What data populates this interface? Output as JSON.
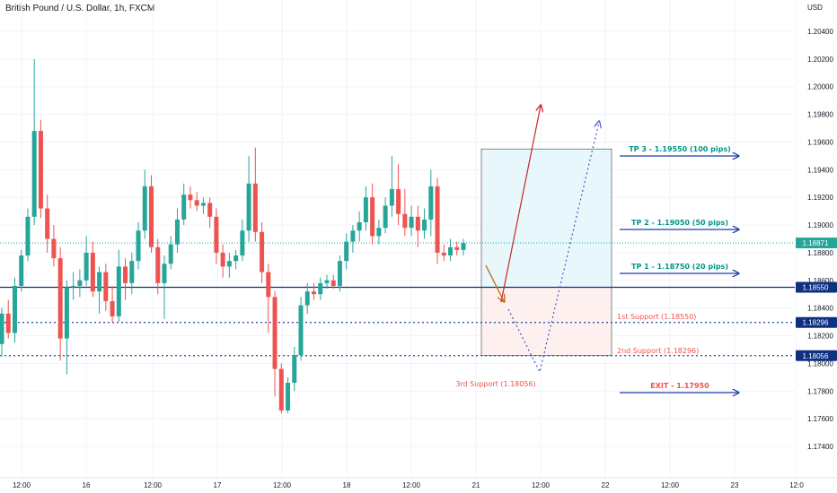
{
  "chart_data": {
    "type": "candlestick",
    "title": "British Pound / U.S. Dollar, 1h, FXCM",
    "currency": "USD",
    "y_ticks": [
      "1.20400",
      "1.20200",
      "1.20000",
      "1.19800",
      "1.19600",
      "1.19400",
      "1.19200",
      "1.19000",
      "1.18800",
      "1.18600",
      "1.18400",
      "1.18200",
      "1.18000",
      "1.17800",
      "1.17600",
      "1.17400"
    ],
    "x_ticks": [
      "12:00",
      "16",
      "12:00",
      "17",
      "12:00",
      "18",
      "12:00",
      "21",
      "12:00",
      "22",
      "12:00",
      "23",
      "12:0"
    ],
    "ylim": [
      1.1735,
      1.205
    ],
    "last_price": "1.18871",
    "levels": [
      {
        "value": 1.1855,
        "label": "1.18550",
        "style": "solid",
        "color": "#0d3080"
      },
      {
        "value": 1.18296,
        "label": "1.18296",
        "style": "dotted",
        "color": "#1a3fa8"
      },
      {
        "value": 1.18056,
        "label": "1.18056",
        "style": "dotted",
        "color": "#1a3fa8"
      }
    ],
    "annotations": {
      "tp3": "TP 3 - 1.19550 (100 pips)",
      "tp2": "TP 2 - 1.19050 (50 pips)",
      "tp1": "TP 1 - 1.18750 (20 pips)",
      "support1": "1st Support (1.18550)",
      "support2": "2nd Support (1.18296)",
      "support3": "3rd Support (1.18056)",
      "exit": "EXIT - 1.17950"
    },
    "colors": {
      "up": "#26a69a",
      "down": "#ef5350",
      "tp": "#009688",
      "support": "#ef5350",
      "arrow": "#1a3fa8",
      "last": "#26a69a",
      "level": "#0d3080"
    },
    "candles": [
      {
        "o": 1.1814,
        "h": 1.184,
        "l": 1.1805,
        "c": 1.1836
      },
      {
        "o": 1.1836,
        "h": 1.1846,
        "l": 1.1818,
        "c": 1.1822
      },
      {
        "o": 1.1822,
        "h": 1.1862,
        "l": 1.1815,
        "c": 1.1856
      },
      {
        "o": 1.1856,
        "h": 1.1882,
        "l": 1.1852,
        "c": 1.1878
      },
      {
        "o": 1.1878,
        "h": 1.1912,
        "l": 1.1874,
        "c": 1.1906
      },
      {
        "o": 1.1906,
        "h": 1.202,
        "l": 1.19,
        "c": 1.1968
      },
      {
        "o": 1.1968,
        "h": 1.1976,
        "l": 1.1905,
        "c": 1.1912
      },
      {
        "o": 1.1912,
        "h": 1.1922,
        "l": 1.188,
        "c": 1.189
      },
      {
        "o": 1.189,
        "h": 1.19,
        "l": 1.187,
        "c": 1.1876
      },
      {
        "o": 1.1876,
        "h": 1.1884,
        "l": 1.1802,
        "c": 1.1818
      },
      {
        "o": 1.1818,
        "h": 1.186,
        "l": 1.1792,
        "c": 1.1855
      },
      {
        "o": 1.1855,
        "h": 1.1866,
        "l": 1.1846,
        "c": 1.1856
      },
      {
        "o": 1.1856,
        "h": 1.1868,
        "l": 1.1848,
        "c": 1.186
      },
      {
        "o": 1.186,
        "h": 1.1892,
        "l": 1.1856,
        "c": 1.188
      },
      {
        "o": 1.188,
        "h": 1.1888,
        "l": 1.1848,
        "c": 1.1852
      },
      {
        "o": 1.1852,
        "h": 1.187,
        "l": 1.1836,
        "c": 1.1866
      },
      {
        "o": 1.1866,
        "h": 1.1872,
        "l": 1.1838,
        "c": 1.1845
      },
      {
        "o": 1.1845,
        "h": 1.1856,
        "l": 1.183,
        "c": 1.1834
      },
      {
        "o": 1.1834,
        "h": 1.1882,
        "l": 1.183,
        "c": 1.187
      },
      {
        "o": 1.187,
        "h": 1.1876,
        "l": 1.1846,
        "c": 1.1858
      },
      {
        "o": 1.1858,
        "h": 1.188,
        "l": 1.185,
        "c": 1.1874
      },
      {
        "o": 1.1874,
        "h": 1.1902,
        "l": 1.1868,
        "c": 1.1896
      },
      {
        "o": 1.1896,
        "h": 1.194,
        "l": 1.189,
        "c": 1.1928
      },
      {
        "o": 1.1928,
        "h": 1.1936,
        "l": 1.188,
        "c": 1.1884
      },
      {
        "o": 1.1884,
        "h": 1.189,
        "l": 1.185,
        "c": 1.1858
      },
      {
        "o": 1.1858,
        "h": 1.1878,
        "l": 1.1832,
        "c": 1.1872
      },
      {
        "o": 1.1872,
        "h": 1.1892,
        "l": 1.1868,
        "c": 1.1886
      },
      {
        "o": 1.1886,
        "h": 1.1912,
        "l": 1.188,
        "c": 1.1904
      },
      {
        "o": 1.1904,
        "h": 1.193,
        "l": 1.19,
        "c": 1.1922
      },
      {
        "o": 1.1922,
        "h": 1.1928,
        "l": 1.1912,
        "c": 1.1918
      },
      {
        "o": 1.1918,
        "h": 1.1924,
        "l": 1.191,
        "c": 1.1914
      },
      {
        "o": 1.1914,
        "h": 1.192,
        "l": 1.1908,
        "c": 1.1916
      },
      {
        "o": 1.1916,
        "h": 1.192,
        "l": 1.1898,
        "c": 1.1906
      },
      {
        "o": 1.1906,
        "h": 1.1912,
        "l": 1.1872,
        "c": 1.188
      },
      {
        "o": 1.188,
        "h": 1.1886,
        "l": 1.1862,
        "c": 1.187
      },
      {
        "o": 1.187,
        "h": 1.188,
        "l": 1.1862,
        "c": 1.1874
      },
      {
        "o": 1.1874,
        "h": 1.1882,
        "l": 1.1868,
        "c": 1.1878
      },
      {
        "o": 1.1878,
        "h": 1.1904,
        "l": 1.1874,
        "c": 1.1896
      },
      {
        "o": 1.1896,
        "h": 1.195,
        "l": 1.1888,
        "c": 1.193
      },
      {
        "o": 1.193,
        "h": 1.1956,
        "l": 1.1888,
        "c": 1.1895
      },
      {
        "o": 1.1895,
        "h": 1.1902,
        "l": 1.1858,
        "c": 1.1866
      },
      {
        "o": 1.1866,
        "h": 1.1872,
        "l": 1.1822,
        "c": 1.1848
      },
      {
        "o": 1.1848,
        "h": 1.1852,
        "l": 1.1776,
        "c": 1.1796
      },
      {
        "o": 1.1796,
        "h": 1.18,
        "l": 1.1764,
        "c": 1.1766
      },
      {
        "o": 1.1766,
        "h": 1.179,
        "l": 1.1764,
        "c": 1.1786
      },
      {
        "o": 1.1786,
        "h": 1.1812,
        "l": 1.178,
        "c": 1.1806
      },
      {
        "o": 1.1806,
        "h": 1.1848,
        "l": 1.1802,
        "c": 1.1842
      },
      {
        "o": 1.1842,
        "h": 1.1858,
        "l": 1.1836,
        "c": 1.1852
      },
      {
        "o": 1.1852,
        "h": 1.1858,
        "l": 1.1846,
        "c": 1.185
      },
      {
        "o": 1.185,
        "h": 1.1862,
        "l": 1.1846,
        "c": 1.1858
      },
      {
        "o": 1.1858,
        "h": 1.1864,
        "l": 1.1854,
        "c": 1.186
      },
      {
        "o": 1.186,
        "h": 1.1864,
        "l": 1.1854,
        "c": 1.1856
      },
      {
        "o": 1.1856,
        "h": 1.1878,
        "l": 1.1852,
        "c": 1.1874
      },
      {
        "o": 1.1874,
        "h": 1.1894,
        "l": 1.1868,
        "c": 1.1888
      },
      {
        "o": 1.1888,
        "h": 1.19,
        "l": 1.188,
        "c": 1.1896
      },
      {
        "o": 1.1896,
        "h": 1.191,
        "l": 1.1888,
        "c": 1.1902
      },
      {
        "o": 1.1902,
        "h": 1.1928,
        "l": 1.1896,
        "c": 1.192
      },
      {
        "o": 1.192,
        "h": 1.193,
        "l": 1.1886,
        "c": 1.1892
      },
      {
        "o": 1.1892,
        "h": 1.1904,
        "l": 1.1886,
        "c": 1.1898
      },
      {
        "o": 1.1898,
        "h": 1.192,
        "l": 1.1894,
        "c": 1.1914
      },
      {
        "o": 1.1914,
        "h": 1.195,
        "l": 1.1906,
        "c": 1.1926
      },
      {
        "o": 1.1926,
        "h": 1.1944,
        "l": 1.19,
        "c": 1.1908
      },
      {
        "o": 1.1908,
        "h": 1.1926,
        "l": 1.1892,
        "c": 1.1898
      },
      {
        "o": 1.1898,
        "h": 1.1914,
        "l": 1.1892,
        "c": 1.1906
      },
      {
        "o": 1.1906,
        "h": 1.1914,
        "l": 1.1884,
        "c": 1.1896
      },
      {
        "o": 1.1896,
        "h": 1.1912,
        "l": 1.189,
        "c": 1.1904
      },
      {
        "o": 1.1904,
        "h": 1.194,
        "l": 1.1892,
        "c": 1.1928
      },
      {
        "o": 1.1928,
        "h": 1.1934,
        "l": 1.1872,
        "c": 1.188
      },
      {
        "o": 1.188,
        "h": 1.1886,
        "l": 1.1874,
        "c": 1.1878
      },
      {
        "o": 1.1878,
        "h": 1.189,
        "l": 1.1874,
        "c": 1.1884
      },
      {
        "o": 1.1884,
        "h": 1.1888,
        "l": 1.1878,
        "c": 1.1882
      },
      {
        "o": 1.1882,
        "h": 1.189,
        "l": 1.1878,
        "c": 1.1887
      }
    ]
  }
}
